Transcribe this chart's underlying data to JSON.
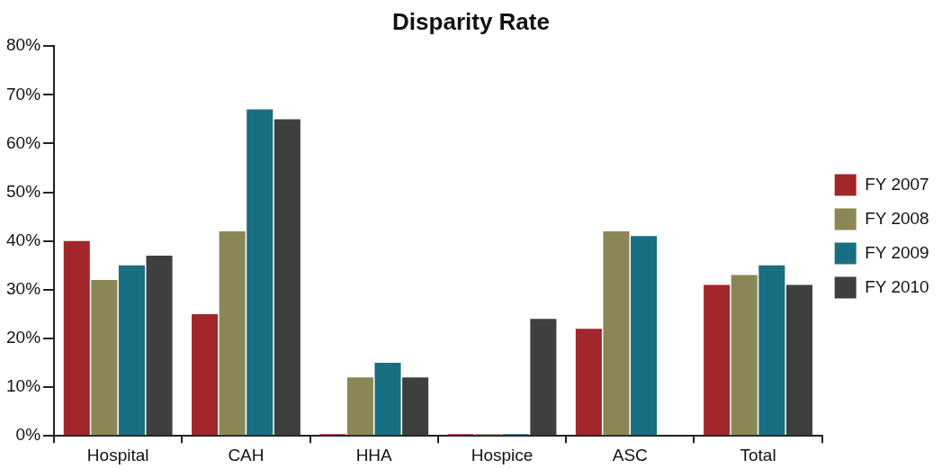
{
  "chart_data": {
    "type": "bar",
    "title": "Disparity Rate",
    "categories": [
      "Hospital",
      "CAH",
      "HHA",
      "Hospice",
      "ASC",
      "Total"
    ],
    "series": [
      {
        "name": "FY 2007",
        "color": "#a3262a",
        "values": [
          40,
          25,
          0,
          0,
          22,
          31
        ]
      },
      {
        "name": "FY 2008",
        "color": "#8b8655",
        "values": [
          32,
          42,
          12,
          0,
          42,
          33
        ]
      },
      {
        "name": "FY 2009",
        "color": "#1a6e82",
        "values": [
          35,
          67,
          15,
          0,
          41,
          35
        ]
      },
      {
        "name": "FY 2010",
        "color": "#3f3f3f",
        "values": [
          37,
          65,
          12,
          24,
          null,
          31
        ]
      }
    ],
    "ylim": [
      0,
      80
    ],
    "yticks": [
      {
        "value": 0,
        "label": "0%"
      },
      {
        "value": 10,
        "label": "10%"
      },
      {
        "value": 20,
        "label": "20%"
      },
      {
        "value": 30,
        "label": "30%"
      },
      {
        "value": 40,
        "label": "40%"
      },
      {
        "value": 50,
        "label": "50%"
      },
      {
        "value": 60,
        "label": "60%"
      },
      {
        "value": 70,
        "label": "70%"
      },
      {
        "value": 80,
        "label": "80%"
      }
    ],
    "grid": false,
    "legend": "right"
  }
}
